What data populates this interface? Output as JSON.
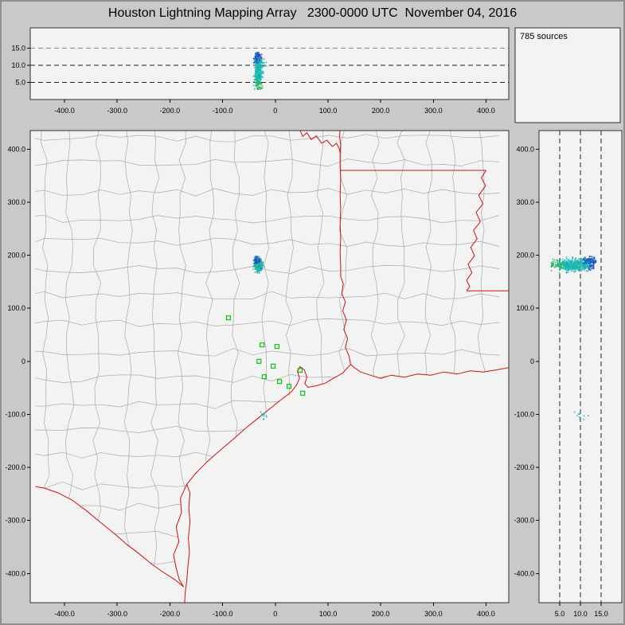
{
  "title": "Houston Lightning Mapping Array   2300-0000 UTC  November 04, 2016",
  "header": {
    "sources_label": "785 sources"
  },
  "colors": {
    "window_bg": "#c9c9c9",
    "panel_bg": "#f3f3f3",
    "panel_border": "#2f2f2f",
    "county_line": "#a9a9a9",
    "state_border": "#cc1111",
    "station": "#00bb00",
    "dashed_line": "#222222",
    "tick": "#000000"
  },
  "chart_data": [
    {
      "id": "ew-altitude-view",
      "type": "scatter",
      "projection": "east-west distance (km) vs altitude (km)",
      "xlim": [
        -465,
        443
      ],
      "ylim": [
        0,
        21
      ],
      "x_ticks": [
        -400,
        -300,
        -200,
        -100,
        0,
        100,
        200,
        300,
        400
      ],
      "x_tick_labels": [
        "-400.0",
        "-300.0",
        "-200.0",
        "-100.0",
        "0",
        "100.0",
        "200.0",
        "300.0",
        "400.0"
      ],
      "y_ticks": [
        15,
        10,
        5
      ],
      "y_tick_labels": [
        "15.0",
        "10.0",
        "5.0"
      ],
      "gridlines": "horizontal dashed at 5, 10, 15 km"
    },
    {
      "id": "plan-view-map",
      "type": "scatter",
      "projection": "plan view, km east-west vs km north-south",
      "xlim": [
        -465,
        443
      ],
      "ylim": [
        -455,
        435
      ],
      "x_ticks": [
        -400,
        -300,
        -200,
        -100,
        0,
        100,
        200,
        300,
        400
      ],
      "x_tick_labels": [
        "-400.0",
        "-300.0",
        "-200.0",
        "-100.0",
        "0",
        "100.0",
        "200.0",
        "300.0",
        "400.0"
      ],
      "y_ticks": [
        400,
        300,
        200,
        100,
        0,
        -100,
        -200,
        -300,
        -400
      ],
      "y_tick_labels": [
        "400.0",
        "300.0",
        "200.0",
        "100.0",
        "0",
        "-100.0",
        "-200.0",
        "-300.0",
        "-400.0"
      ],
      "map_features": "Texas county outlines in gray; state borders, rivers and Gulf coastline in red",
      "stations": [
        [
          -89,
          82
        ],
        [
          -25,
          31
        ],
        [
          3,
          28
        ],
        [
          -31,
          0
        ],
        [
          -4,
          -9
        ],
        [
          47,
          -17
        ],
        [
          -21,
          -29
        ],
        [
          8,
          -38
        ],
        [
          26,
          -47
        ],
        [
          52,
          -60
        ]
      ]
    },
    {
      "id": "ns-altitude-view",
      "type": "scatter",
      "projection": "altitude (km) vs north-south distance (km)",
      "xlim": [
        0,
        20
      ],
      "ylim": [
        -455,
        435
      ],
      "x_ticks": [
        5,
        10,
        15
      ],
      "x_tick_labels": [
        "5.0",
        "10.0",
        "15.0"
      ],
      "gridlines": "vertical dashed at 5, 10, 15 km"
    },
    {
      "id": "source-count-panel",
      "type": "text",
      "label": "785 sources",
      "count": 785
    }
  ],
  "sources": {
    "count": 785,
    "seed": 20161104,
    "clusters": [
      {
        "count": 690,
        "x_mean": -32,
        "x_sd": 3.0,
        "y_mean": 182,
        "y_sd": 5.0,
        "alt_mean": 8.4,
        "alt_sd": 2.4,
        "alt_min": 3.0,
        "alt_max": 13.2
      },
      {
        "count": 85,
        "x_mean": -35,
        "x_sd": 2.2,
        "y_mean": 190,
        "y_sd": 3.0,
        "alt_mean": 12.3,
        "alt_sd": 0.8,
        "alt_min": 10.8,
        "alt_max": 13.7,
        "color": "#2451c9"
      },
      {
        "count": 10,
        "x_mean": -24,
        "x_sd": 6.0,
        "y_mean": -102,
        "y_sd": 4.0,
        "alt_mean": 10.2,
        "alt_sd": 0.9,
        "alt_min": 8.5,
        "alt_max": 12.0
      }
    ],
    "palette": {
      "teal": "#15b2b2",
      "teal_light": "#3cc6c6",
      "green": "#3abb3a",
      "blue": "#2451c9"
    }
  },
  "map_geometry": {
    "county_grid": {
      "step_x": 52,
      "step_y": 50,
      "jitter": 8
    },
    "land_polygon": [
      [
        -455,
        442
      ],
      [
        443,
        442
      ],
      [
        443,
        -12
      ],
      [
        420,
        -16
      ],
      [
        395,
        -20
      ],
      [
        370,
        -18
      ],
      [
        345,
        -24
      ],
      [
        320,
        -20
      ],
      [
        295,
        -26
      ],
      [
        270,
        -24
      ],
      [
        245,
        -30
      ],
      [
        220,
        -26
      ],
      [
        200,
        -32
      ],
      [
        180,
        -26
      ],
      [
        162,
        -20
      ],
      [
        150,
        -12
      ],
      [
        143,
        -6
      ],
      [
        128,
        -22
      ],
      [
        110,
        -32
      ],
      [
        95,
        -41
      ],
      [
        78,
        -46
      ],
      [
        62,
        -49
      ],
      [
        50,
        -56
      ],
      [
        30,
        -63
      ],
      [
        10,
        -75
      ],
      [
        -10,
        -90
      ],
      [
        -30,
        -105
      ],
      [
        -55,
        -125
      ],
      [
        -80,
        -147
      ],
      [
        -105,
        -168
      ],
      [
        -130,
        -190
      ],
      [
        -152,
        -212
      ],
      [
        -168,
        -232
      ],
      [
        -180,
        -258
      ],
      [
        -178,
        -285
      ],
      [
        -188,
        -312
      ],
      [
        -183,
        -340
      ],
      [
        -193,
        -365
      ],
      [
        -188,
        -390
      ],
      [
        -182,
        -412
      ],
      [
        -174,
        -425
      ],
      [
        -190,
        -412
      ],
      [
        -212,
        -398
      ],
      [
        -235,
        -382
      ],
      [
        -258,
        -363
      ],
      [
        -282,
        -345
      ],
      [
        -305,
        -325
      ],
      [
        -330,
        -305
      ],
      [
        -358,
        -282
      ],
      [
        -385,
        -262
      ],
      [
        -412,
        -248
      ],
      [
        -438,
        -239
      ],
      [
        -455,
        -236
      ]
    ],
    "state_borders": [
      {
        "name": "red-river-tx-ok",
        "points": [
          [
            45,
            440
          ],
          [
            52,
            424
          ],
          [
            60,
            431
          ],
          [
            68,
            418
          ],
          [
            78,
            425
          ],
          [
            88,
            411
          ],
          [
            98,
            417
          ],
          [
            108,
            405
          ],
          [
            116,
            411
          ],
          [
            121,
            402
          ],
          [
            123,
            393
          ]
        ]
      },
      {
        "name": "tx-ne-corner",
        "points": [
          [
            123,
            440
          ],
          [
            122,
            424
          ],
          [
            124,
            408
          ],
          [
            123,
            393
          ]
        ]
      },
      {
        "name": "tx-la-eastern-border",
        "points": [
          [
            123,
            393
          ],
          [
            123,
            368
          ],
          [
            124,
            342
          ],
          [
            123,
            315
          ],
          [
            124,
            288
          ],
          [
            123,
            260
          ],
          [
            124,
            232
          ],
          [
            123,
            205
          ],
          [
            124,
            180
          ],
          [
            124,
            160
          ],
          [
            129,
            146
          ],
          [
            126,
            128
          ],
          [
            133,
            112
          ],
          [
            128,
            95
          ],
          [
            135,
            78
          ],
          [
            130,
            60
          ],
          [
            137,
            43
          ],
          [
            133,
            26
          ],
          [
            140,
            10
          ],
          [
            143,
            -6
          ]
        ]
      },
      {
        "name": "ar-la-33n-line",
        "points": [
          [
            123,
            360
          ],
          [
            400,
            360
          ]
        ]
      },
      {
        "name": "mississippi-river",
        "points": [
          [
            400,
            360
          ],
          [
            391,
            346
          ],
          [
            399,
            331
          ],
          [
            386,
            313
          ],
          [
            394,
            297
          ],
          [
            381,
            281
          ],
          [
            389,
            263
          ],
          [
            376,
            247
          ],
          [
            383,
            231
          ],
          [
            371,
            215
          ],
          [
            378,
            199
          ],
          [
            366,
            183
          ],
          [
            373,
            167
          ],
          [
            363,
            153
          ],
          [
            369,
            141
          ],
          [
            363,
            133
          ]
        ]
      },
      {
        "name": "la-ms-31n-line",
        "points": [
          [
            363,
            133
          ],
          [
            443,
            133
          ]
        ]
      },
      {
        "name": "gulf-coastline",
        "points": [
          [
            443,
            -12
          ],
          [
            420,
            -16
          ],
          [
            395,
            -20
          ],
          [
            370,
            -18
          ],
          [
            345,
            -24
          ],
          [
            320,
            -20
          ],
          [
            295,
            -26
          ],
          [
            270,
            -24
          ],
          [
            245,
            -30
          ],
          [
            220,
            -26
          ],
          [
            200,
            -32
          ],
          [
            180,
            -26
          ],
          [
            162,
            -20
          ],
          [
            150,
            -12
          ],
          [
            143,
            -6
          ],
          [
            128,
            -22
          ],
          [
            110,
            -32
          ],
          [
            95,
            -41
          ],
          [
            78,
            -46
          ],
          [
            62,
            -49
          ],
          [
            56,
            -42
          ],
          [
            60,
            -30
          ],
          [
            55,
            -16
          ],
          [
            47,
            -10
          ],
          [
            42,
            -18
          ],
          [
            46,
            -32
          ],
          [
            40,
            -45
          ],
          [
            30,
            -58
          ],
          [
            10,
            -73
          ],
          [
            -10,
            -89
          ],
          [
            -30,
            -105
          ],
          [
            -55,
            -125
          ],
          [
            -80,
            -147
          ],
          [
            -105,
            -168
          ],
          [
            -130,
            -190
          ],
          [
            -152,
            -212
          ],
          [
            -168,
            -232
          ],
          [
            -162,
            -248
          ],
          [
            -164,
            -276
          ],
          [
            -162,
            -304
          ],
          [
            -165,
            -332
          ],
          [
            -163,
            -360
          ],
          [
            -166,
            -388
          ],
          [
            -168,
            -414
          ],
          [
            -171,
            -436
          ],
          [
            -172,
            -455
          ]
        ]
      },
      {
        "name": "laguna-madre-shore",
        "points": [
          [
            -168,
            -232
          ],
          [
            -180,
            -258
          ],
          [
            -178,
            -285
          ],
          [
            -188,
            -312
          ],
          [
            -183,
            -340
          ],
          [
            -193,
            -365
          ],
          [
            -188,
            -390
          ],
          [
            -182,
            -412
          ],
          [
            -174,
            -425
          ]
        ]
      },
      {
        "name": "rio-grande",
        "points": [
          [
            -174,
            -425
          ],
          [
            -190,
            -412
          ],
          [
            -212,
            -398
          ],
          [
            -235,
            -382
          ],
          [
            -258,
            -363
          ],
          [
            -282,
            -345
          ],
          [
            -305,
            -325
          ],
          [
            -330,
            -305
          ],
          [
            -358,
            -282
          ],
          [
            -385,
            -262
          ],
          [
            -412,
            -248
          ],
          [
            -438,
            -239
          ],
          [
            -455,
            -236
          ]
        ]
      }
    ]
  }
}
